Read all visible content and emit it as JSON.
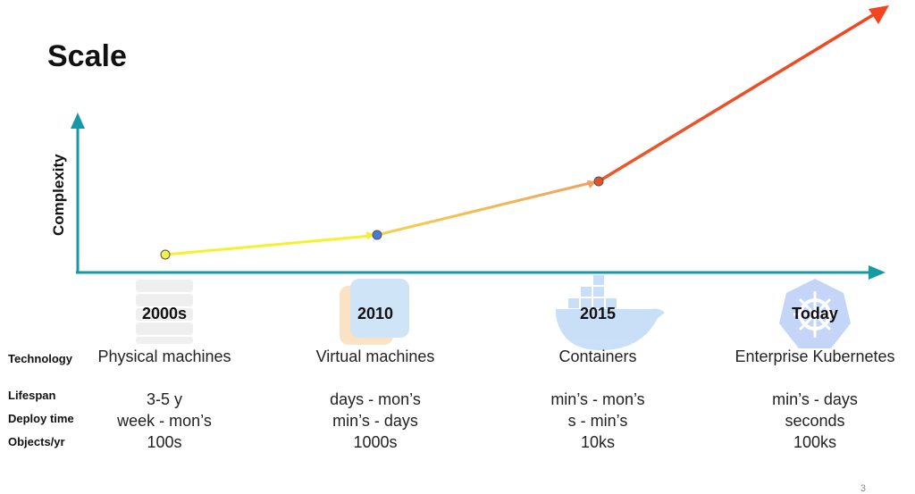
{
  "title": "Scale",
  "y_axis_label": "Complexity",
  "eras": [
    {
      "period": "2000s",
      "technology": "Physical machines",
      "lifespan": "3-5 y",
      "deploy_time": "week - mon’s",
      "objects_per_yr": "100s",
      "icon": "server-rack-icon"
    },
    {
      "period": "2010",
      "technology": "Virtual machines",
      "lifespan": "days - mon’s",
      "deploy_time": "min’s - days",
      "objects_per_yr": "1000s",
      "icon": "virtualbox-icon"
    },
    {
      "period": "2015",
      "technology": "Containers",
      "lifespan": "min’s - mon’s",
      "deploy_time": "s - min’s",
      "objects_per_yr": "10ks",
      "icon": "docker-whale-icon"
    },
    {
      "period": "Today",
      "technology": "Enterprise Kubernetes",
      "lifespan": "min’s - days",
      "deploy_time": "seconds",
      "objects_per_yr": "100ks",
      "icon": "kubernetes-helm-icon"
    }
  ],
  "row_labels": {
    "technology": "Technology",
    "lifespan": "Lifespan",
    "deploy_time": "Deploy time",
    "objects_per_yr": "Objects/yr"
  },
  "page_number": "3",
  "colors": {
    "axis": "#159aa5",
    "point_2000s": "#f3f047",
    "point_2010": "#4a78d8",
    "point_2015": "#e2542a",
    "segment_1": "#f5f12f",
    "segment_2_start": "#f5d24a",
    "segment_2_end": "#f0a060",
    "arrow_end": "#ee4a24"
  }
}
